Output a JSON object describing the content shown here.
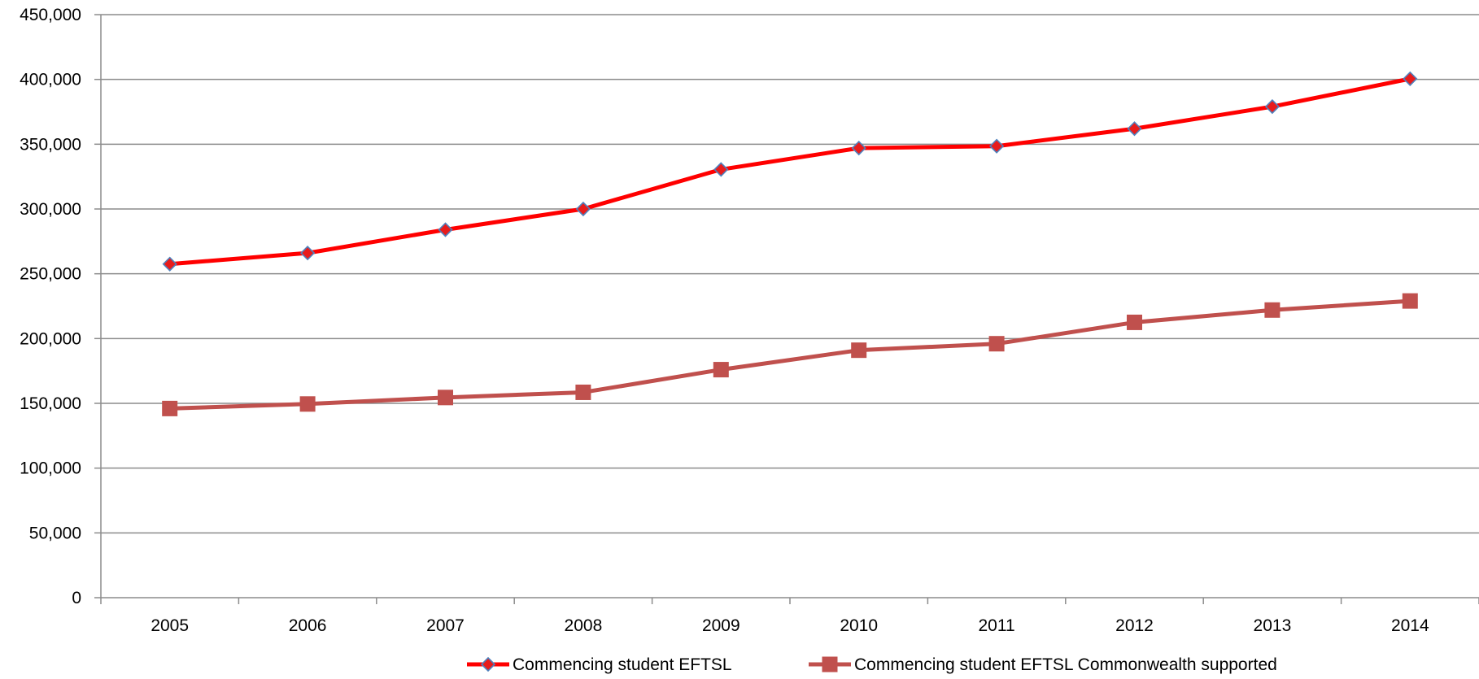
{
  "chart_data": {
    "type": "line",
    "title": "",
    "xlabel": "",
    "ylabel": "",
    "categories": [
      "2005",
      "2006",
      "2007",
      "2008",
      "2009",
      "2010",
      "2011",
      "2012",
      "2013",
      "2014"
    ],
    "ylim": [
      0,
      450000
    ],
    "y_ticks": [
      0,
      50000,
      100000,
      150000,
      200000,
      250000,
      300000,
      350000,
      400000,
      450000
    ],
    "y_tick_labels": [
      "0",
      "50,000",
      "100,000",
      "150,000",
      "200,000",
      "250,000",
      "300,000",
      "350,000",
      "400,000",
      "450,000"
    ],
    "grid": true,
    "legend_position": "bottom",
    "series": [
      {
        "name": "Commencing student EFTSL",
        "color": "#ff0000",
        "marker": "diamond",
        "marker_fill": "#e81c1c",
        "marker_stroke": "#4f81bd",
        "values": [
          257500,
          266000,
          284000,
          300000,
          330500,
          347000,
          348500,
          362000,
          379000,
          400500
        ]
      },
      {
        "name": "Commencing student EFTSL Commonwealth supported",
        "color": "#c0504d",
        "marker": "square",
        "marker_fill": "#c0504d",
        "marker_stroke": "#c0504d",
        "values": [
          146000,
          149500,
          154500,
          158500,
          176000,
          191000,
          196000,
          212500,
          222000,
          229000
        ]
      }
    ]
  }
}
